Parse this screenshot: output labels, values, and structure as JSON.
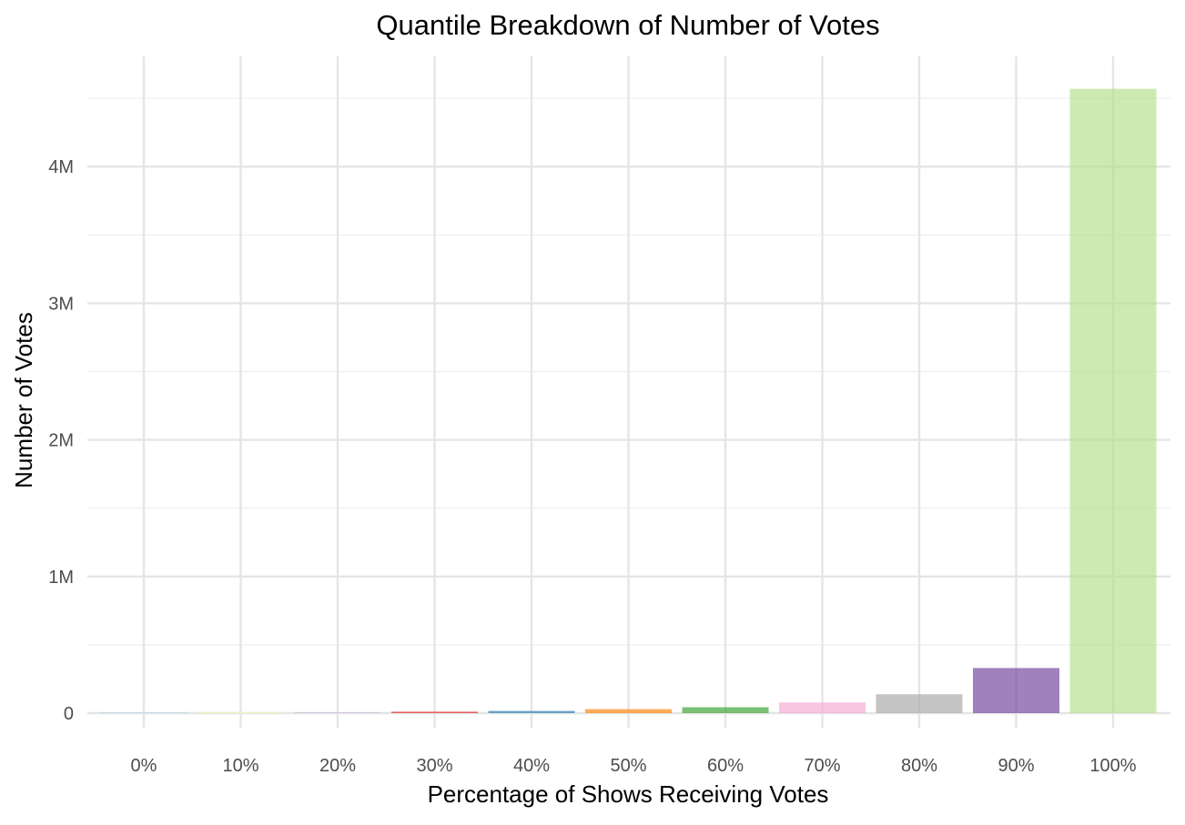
{
  "chart_data": {
    "type": "bar",
    "title": "Quantile Breakdown of Number of Votes",
    "xlabel": "Percentage of Shows Receiving Votes",
    "ylabel": "Number of Votes",
    "categories": [
      "0%",
      "10%",
      "20%",
      "30%",
      "40%",
      "50%",
      "60%",
      "70%",
      "80%",
      "90%",
      "100%"
    ],
    "values": [
      5,
      4000,
      7000,
      10500,
      16000,
      29000,
      43000,
      78000,
      138000,
      330000,
      4570000
    ],
    "colors": [
      "#A6CEE3",
      "#FFFF99",
      "#CAB2D6",
      "#E31A1C",
      "#1F78B4",
      "#FF7F00",
      "#33A02C",
      "#F4A6D3",
      "#A6A6A6",
      "#6A3D9A",
      "#B2DF8A"
    ],
    "bar_opacity": 0.65,
    "yticks": [
      0,
      1000000,
      2000000,
      3000000,
      4000000
    ],
    "ytick_labels": [
      "0",
      "1M",
      "2M",
      "3M",
      "4M"
    ],
    "ylim": [
      0,
      4570000
    ],
    "grid": true,
    "legend": "none"
  }
}
